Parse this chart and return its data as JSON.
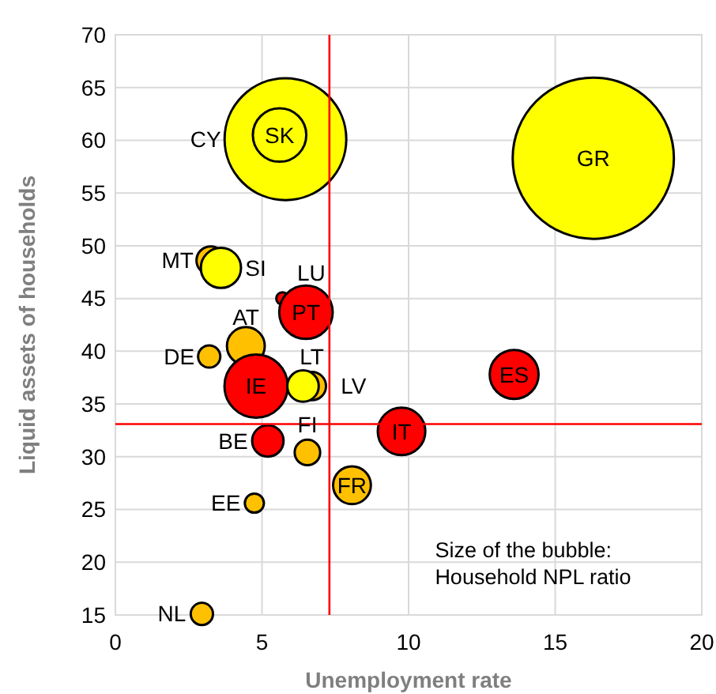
{
  "chart_data": {
    "type": "bubble",
    "xlabel": "Unemployment rate",
    "ylabel": "Liquid assets of households",
    "xlim": [
      0,
      20
    ],
    "ylim": [
      15,
      70
    ],
    "xticks": [
      0,
      5,
      10,
      15,
      20
    ],
    "yticks": [
      15,
      20,
      25,
      30,
      35,
      40,
      45,
      50,
      55,
      60,
      65,
      70
    ],
    "grid": true,
    "x": [
      16.3,
      5.8,
      5.6,
      3.25,
      3.6,
      5.7,
      6.5,
      4.45,
      3.2,
      6.7,
      4.8,
      6.4,
      5.2,
      6.55,
      8.07,
      4.74,
      2.95,
      9.76,
      13.6
    ],
    "values": [
      58.3,
      60.1,
      60.5,
      48.6,
      47.9,
      45.0,
      43.7,
      40.5,
      39.5,
      36.7,
      36.7,
      36.7,
      31.5,
      30.4,
      27.3,
      25.6,
      15.1,
      32.4,
      37.8
    ],
    "sizes": [
      1,
      0.57,
      0.11,
      0.031,
      0.062,
      0.006,
      0.11,
      0.055,
      0.019,
      0.031,
      0.154,
      0.038,
      0.038,
      0.025,
      0.055,
      0.014,
      0.019,
      0.087,
      0.092
    ],
    "colors": [
      "#ffff00",
      "#ffff00",
      "#ffff00",
      "#ffc000",
      "#ffff00",
      "#ff0000",
      "#ff0000",
      "#ffc000",
      "#ffc000",
      "#ffc000",
      "#ff0000",
      "#ffff00",
      "#ff0000",
      "#ffc000",
      "#ffc000",
      "#ffc000",
      "#ffc000",
      "#ff0000",
      "#ff0000"
    ],
    "ref_lines": [
      {
        "axis": "x",
        "value": 7.3,
        "color": "#ff0000"
      },
      {
        "axis": "y",
        "value": 33.1,
        "color": "#ff0000"
      }
    ],
    "annotations": [
      {
        "text": "GR",
        "x": 16.3,
        "y": 58.3
      },
      {
        "text": "CY",
        "x": 5.8,
        "y": 60.1
      },
      {
        "text": "SK",
        "x": 5.6,
        "y": 60.5
      },
      {
        "text": "MT",
        "x": 3.25,
        "y": 48.6
      },
      {
        "text": "SI",
        "x": 3.6,
        "y": 47.9
      },
      {
        "text": "LU",
        "x": 5.7,
        "y": 45.0
      },
      {
        "text": "PT",
        "x": 6.5,
        "y": 43.7
      },
      {
        "text": "AT",
        "x": 4.45,
        "y": 40.5
      },
      {
        "text": "DE",
        "x": 3.2,
        "y": 39.5
      },
      {
        "text": "LT",
        "x": 6.7,
        "y": 36.7
      },
      {
        "text": "IE",
        "x": 4.8,
        "y": 36.7
      },
      {
        "text": "LV",
        "x": 6.4,
        "y": 36.7
      },
      {
        "text": "BE",
        "x": 5.2,
        "y": 31.5
      },
      {
        "text": "FI",
        "x": 6.55,
        "y": 30.4
      },
      {
        "text": "FR",
        "x": 8.07,
        "y": 27.3
      },
      {
        "text": "EE",
        "x": 4.74,
        "y": 25.6
      },
      {
        "text": "NL",
        "x": 2.95,
        "y": 15.1
      },
      {
        "text": "IT",
        "x": 9.76,
        "y": 32.4
      },
      {
        "text": "ES",
        "x": 13.6,
        "y": 37.8
      },
      "Size of the bubble:\nHousehold NPL ratio"
    ]
  }
}
